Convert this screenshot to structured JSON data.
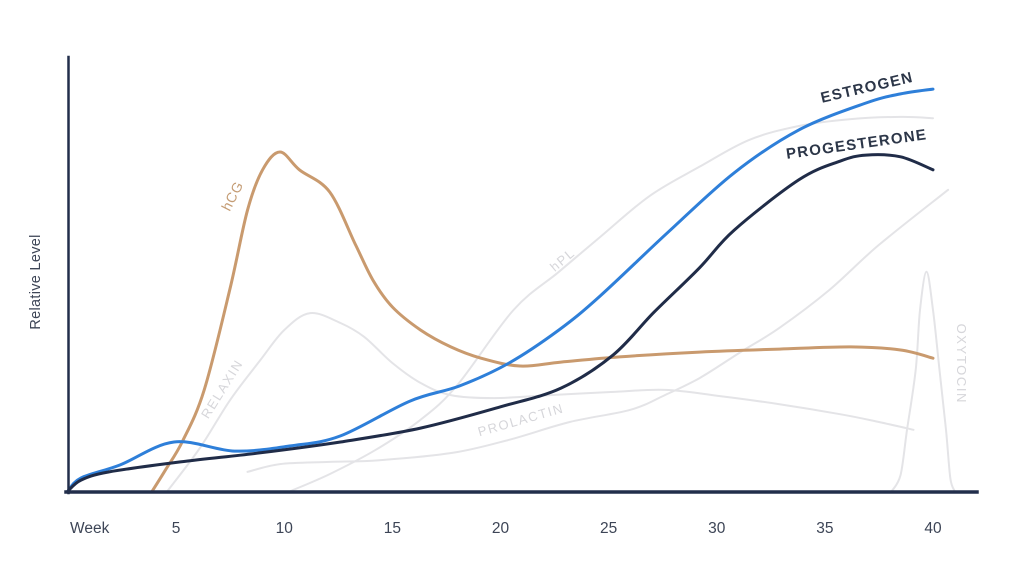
{
  "axis": {
    "y_label": "Relative Level",
    "x_label": "Week",
    "axis_color": "#222e4b",
    "tick_color": "#3d4556",
    "x_ticks": [
      {
        "week": 5,
        "label": "5"
      },
      {
        "week": 10,
        "label": "10"
      },
      {
        "week": 15,
        "label": "15"
      },
      {
        "week": 20,
        "label": "20"
      },
      {
        "week": 25,
        "label": "25"
      },
      {
        "week": 30,
        "label": "30"
      },
      {
        "week": 35,
        "label": "35"
      },
      {
        "week": 40,
        "label": "40"
      }
    ]
  },
  "chart_data": {
    "type": "line",
    "xlabel": "Week",
    "ylabel": "Relative Level",
    "x_range": [
      0,
      42
    ],
    "y_range_relative": [
      0,
      100
    ],
    "grid": false,
    "legend_position": "inline-curve-labels",
    "series": [
      {
        "name": "RELAXIN",
        "color": "#e4e4e7",
        "label_color": "#d6d6da",
        "label_style": "muted",
        "line_width": 2,
        "label_anchor": {
          "week": 7.3,
          "level": 23.0,
          "angle": -58
        },
        "points": [
          [
            4.6,
            0
          ],
          [
            6.1,
            9.9
          ],
          [
            7.5,
            21.0
          ],
          [
            8.9,
            30.2
          ],
          [
            10.0,
            37.1
          ],
          [
            11.2,
            41.0
          ],
          [
            12.6,
            38.7
          ],
          [
            13.7,
            35.5
          ],
          [
            15.0,
            29.5
          ],
          [
            16.3,
            24.9
          ],
          [
            17.7,
            22.1
          ],
          [
            19.7,
            21.4
          ],
          [
            22.3,
            22.1
          ],
          [
            25.1,
            22.8
          ],
          [
            27.6,
            23.3
          ],
          [
            30.1,
            21.9
          ],
          [
            32.9,
            20.0
          ],
          [
            35.7,
            17.7
          ],
          [
            37.5,
            15.9
          ],
          [
            39.1,
            14.1
          ]
        ]
      },
      {
        "name": "hPL",
        "color": "#e4e4e7",
        "label_color": "#d6d6da",
        "label_style": "muted",
        "line_width": 2,
        "label_anchor": {
          "week": 23.0,
          "level": 52.5,
          "angle": -40
        },
        "points": [
          [
            10.3,
            0
          ],
          [
            12.1,
            3.9
          ],
          [
            14.2,
            9.4
          ],
          [
            16.3,
            16.4
          ],
          [
            18.0,
            24.4
          ],
          [
            20.6,
            41.7
          ],
          [
            22.7,
            50.5
          ],
          [
            24.6,
            58.5
          ],
          [
            26.9,
            68.0
          ],
          [
            29.2,
            74.7
          ],
          [
            31.5,
            80.9
          ],
          [
            33.8,
            84.1
          ],
          [
            36.2,
            85.7
          ],
          [
            38.5,
            86.2
          ],
          [
            40.0,
            85.9
          ]
        ]
      },
      {
        "name": "PROLACTIN",
        "color": "#e4e4e7",
        "label_color": "#d6d6da",
        "label_style": "muted",
        "line_width": 2,
        "label_anchor": {
          "week": 21.0,
          "level": 15.4,
          "angle": -16
        },
        "points": [
          [
            8.3,
            4.4
          ],
          [
            9.8,
            6.2
          ],
          [
            12.1,
            6.7
          ],
          [
            14.4,
            7.1
          ],
          [
            17.8,
            8.8
          ],
          [
            20.4,
            11.8
          ],
          [
            23.2,
            15.9
          ],
          [
            26.0,
            18.7
          ],
          [
            27.6,
            22.1
          ],
          [
            29.2,
            26.0
          ],
          [
            31.1,
            32.0
          ],
          [
            32.9,
            37.6
          ],
          [
            35.2,
            46.3
          ],
          [
            37.5,
            56.7
          ],
          [
            40.7,
            69.4
          ]
        ]
      },
      {
        "name": "OXYTOCIN",
        "color": "#e4e4e7",
        "label_color": "#d6d6da",
        "label_style": "muted",
        "line_width": 2,
        "label_anchor": {
          "week": 41.1,
          "level": 29.3,
          "angle": 90
        },
        "points": [
          [
            38.1,
            0
          ],
          [
            38.5,
            3.7
          ],
          [
            38.8,
            14.1
          ],
          [
            39.2,
            27.9
          ],
          [
            39.4,
            41.7
          ],
          [
            39.7,
            50.5
          ],
          [
            40.0,
            41.7
          ],
          [
            40.3,
            27.9
          ],
          [
            40.6,
            14.1
          ],
          [
            40.8,
            3.0
          ],
          [
            41.0,
            0
          ]
        ]
      },
      {
        "name": "hCG",
        "color": "#c99a6e",
        "label_color": "#c49c74",
        "label_style": "accent",
        "line_width": 3,
        "label_anchor": {
          "week": 7.8,
          "level": 67.5,
          "angle": -63
        },
        "points": [
          [
            3.9,
            0
          ],
          [
            4.5,
            4.8
          ],
          [
            5.3,
            11.5
          ],
          [
            6.3,
            23.3
          ],
          [
            7.5,
            46.8
          ],
          [
            8.3,
            64.7
          ],
          [
            9.0,
            74.0
          ],
          [
            9.8,
            78.1
          ],
          [
            10.7,
            74.0
          ],
          [
            12.1,
            68.9
          ],
          [
            13.3,
            56.7
          ],
          [
            14.1,
            48.6
          ],
          [
            15.0,
            42.4
          ],
          [
            16.3,
            37.1
          ],
          [
            17.7,
            33.2
          ],
          [
            19.1,
            30.6
          ],
          [
            20.9,
            28.8
          ],
          [
            22.8,
            29.7
          ],
          [
            25.5,
            30.9
          ],
          [
            29.2,
            32.0
          ],
          [
            32.9,
            32.7
          ],
          [
            36.2,
            33.2
          ],
          [
            38.5,
            32.5
          ],
          [
            40.0,
            30.6
          ]
        ]
      },
      {
        "name": "ESTROGEN",
        "color": "#2e7fd9",
        "label_color": "#2c3648",
        "label_style": "dark",
        "line_width": 3,
        "label_anchor": {
          "week": 37.0,
          "level": 91.9,
          "angle": -13
        },
        "points": [
          [
            0,
            0
          ],
          [
            0.6,
            3.0
          ],
          [
            2.4,
            6.0
          ],
          [
            4.9,
            11.3
          ],
          [
            7.7,
            9.2
          ],
          [
            10.3,
            10.4
          ],
          [
            12.6,
            12.7
          ],
          [
            15.8,
            20.7
          ],
          [
            18.1,
            24.2
          ],
          [
            20.4,
            29.5
          ],
          [
            22.7,
            37.1
          ],
          [
            24.6,
            44.9
          ],
          [
            27.7,
            59.4
          ],
          [
            30.8,
            73.3
          ],
          [
            33.8,
            83.2
          ],
          [
            36.9,
            89.4
          ],
          [
            38.5,
            91.5
          ],
          [
            40.0,
            92.6
          ]
        ]
      },
      {
        "name": "PROGESTERONE",
        "color": "#202c48",
        "label_color": "#2c3648",
        "label_style": "dark",
        "line_width": 3,
        "label_anchor": {
          "week": 36.5,
          "level": 78.8,
          "angle": -8
        },
        "points": [
          [
            0,
            0
          ],
          [
            0.6,
            2.5
          ],
          [
            1.9,
            4.4
          ],
          [
            5.2,
            6.7
          ],
          [
            8.9,
            8.8
          ],
          [
            12.6,
            11.3
          ],
          [
            16.3,
            14.5
          ],
          [
            20.0,
            19.4
          ],
          [
            22.8,
            23.7
          ],
          [
            25.2,
            31.3
          ],
          [
            27.1,
            41.2
          ],
          [
            29.2,
            51.4
          ],
          [
            30.8,
            60.1
          ],
          [
            33.8,
            71.7
          ],
          [
            35.7,
            76.0
          ],
          [
            36.9,
            77.4
          ],
          [
            38.5,
            77.0
          ],
          [
            40.0,
            74.0
          ]
        ]
      }
    ]
  }
}
